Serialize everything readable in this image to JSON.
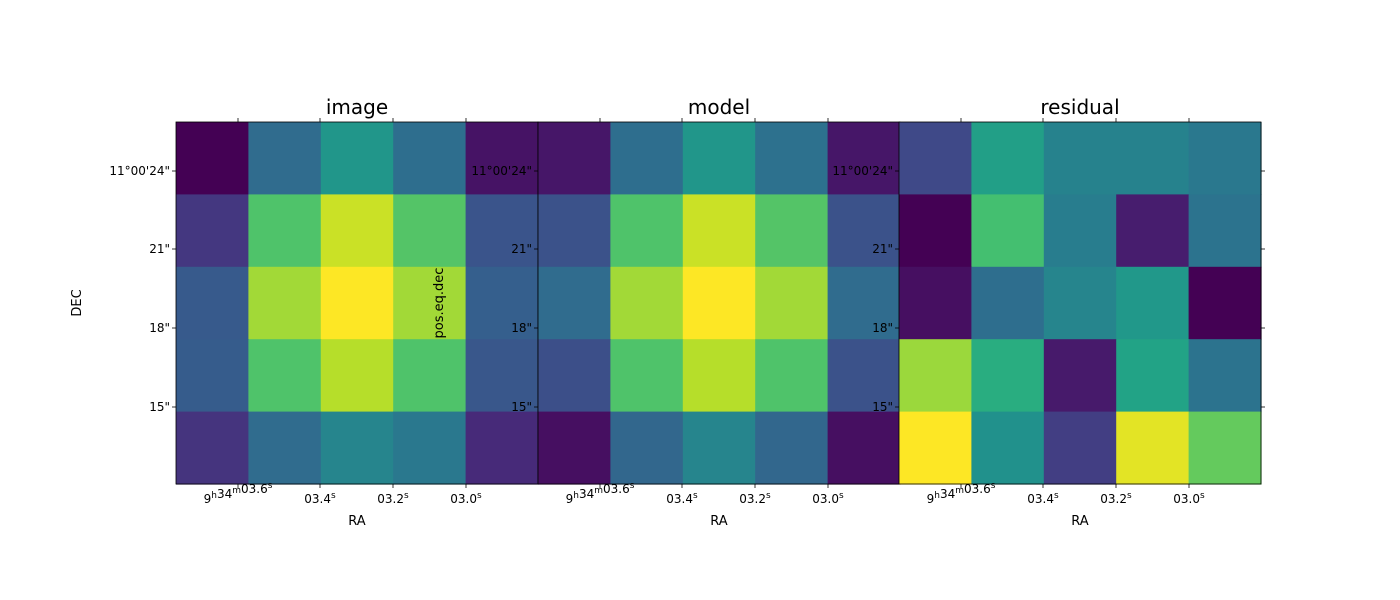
{
  "chart_data": [
    {
      "type": "heatmap",
      "title": "image",
      "xlabel": "RA",
      "ylabel": "DEC",
      "x_ticks": [
        {
          "h": "9",
          "m": "34",
          "s": "03.6",
          "single": false
        },
        {
          "s": "03.4",
          "single": true
        },
        {
          "s": "03.2",
          "single": true
        },
        {
          "s": "03.0",
          "single": true
        }
      ],
      "y_ticks": [
        "11°00'24\"",
        "21\"",
        "18\"",
        "15\""
      ],
      "x_ticks_top": true,
      "y_ticks_right": false,
      "grid": false,
      "rows": 5,
      "cols": 5,
      "z": [
        [
          0.0,
          0.35,
          0.52,
          0.36,
          0.05
        ],
        [
          0.16,
          0.72,
          0.92,
          0.73,
          0.26
        ],
        [
          0.28,
          0.86,
          1.0,
          0.86,
          0.3
        ],
        [
          0.29,
          0.72,
          0.89,
          0.72,
          0.27
        ],
        [
          0.15,
          0.35,
          0.45,
          0.4,
          0.12
        ]
      ]
    },
    {
      "type": "heatmap",
      "title": "model",
      "xlabel": "RA",
      "ylabel": "pos.eq.dec",
      "x_ticks": [
        {
          "h": "9",
          "m": "34",
          "s": "03.6",
          "single": false
        },
        {
          "s": "03.4",
          "single": true
        },
        {
          "s": "03.2",
          "single": true
        },
        {
          "s": "03.0",
          "single": true
        }
      ],
      "y_ticks": [
        "11°00'24\"",
        "21\"",
        "18\"",
        "15\""
      ],
      "x_ticks_top": true,
      "y_ticks_right": false,
      "grid": false,
      "rows": 5,
      "cols": 5,
      "z": [
        [
          0.06,
          0.36,
          0.52,
          0.37,
          0.06
        ],
        [
          0.25,
          0.72,
          0.92,
          0.73,
          0.25
        ],
        [
          0.35,
          0.86,
          1.0,
          0.86,
          0.35
        ],
        [
          0.24,
          0.72,
          0.89,
          0.72,
          0.25
        ],
        [
          0.04,
          0.33,
          0.45,
          0.33,
          0.04
        ]
      ]
    },
    {
      "type": "heatmap",
      "title": "residual",
      "xlabel": "RA",
      "ylabel": "pos.eq.dec",
      "x_ticks": [
        {
          "h": "9",
          "m": "34",
          "s": "03.6",
          "single": false
        },
        {
          "s": "03.4",
          "single": true
        },
        {
          "s": "03.2",
          "single": true
        },
        {
          "s": "03.0",
          "single": true
        }
      ],
      "y_ticks": [
        "11°00'24\"",
        "21\"",
        "18\"",
        "15\""
      ],
      "x_ticks_top": true,
      "y_ticks_right": true,
      "grid": false,
      "rows": 5,
      "cols": 5,
      "z": [
        [
          0.22,
          0.56,
          0.44,
          0.44,
          0.4
        ],
        [
          0.0,
          0.7,
          0.42,
          0.08,
          0.38
        ],
        [
          0.04,
          0.36,
          0.45,
          0.53,
          0.0
        ],
        [
          0.85,
          0.62,
          0.07,
          0.58,
          0.38
        ],
        [
          1.0,
          0.5,
          0.18,
          0.96,
          0.76
        ]
      ]
    }
  ]
}
